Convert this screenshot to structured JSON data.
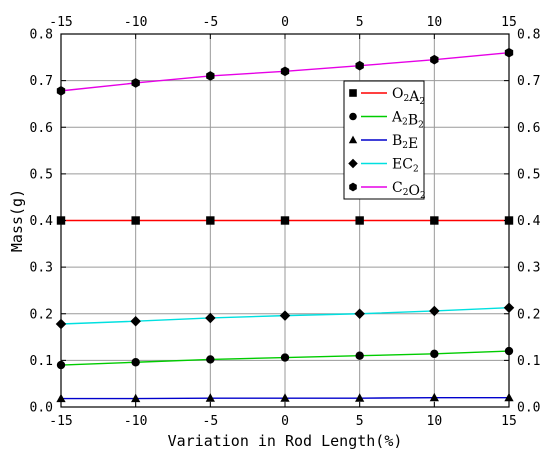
{
  "chart_data": {
    "type": "line",
    "xlabel": "Variation in Rod Length(%)",
    "ylabel": "Mass(g)",
    "x": [
      -15,
      -10,
      -5,
      0,
      5,
      10,
      15
    ],
    "xlim": [
      -15,
      15
    ],
    "ylim": [
      0.0,
      0.8
    ],
    "xticks": [
      "-15",
      "-10",
      "-5",
      "0",
      "5",
      "10",
      "15"
    ],
    "yticks": [
      "0.0",
      "0.1",
      "0.2",
      "0.3",
      "0.4",
      "0.5",
      "0.6",
      "0.7",
      "0.8"
    ],
    "grid": true,
    "mirrored_axes": true,
    "legend_position": "center-right",
    "series": [
      {
        "name": "O2A2",
        "label_main": [
          "O",
          "A"
        ],
        "label_sub": [
          "2",
          "2"
        ],
        "marker": "square",
        "color": "#ff0000",
        "values": [
          0.4,
          0.4,
          0.4,
          0.4,
          0.4,
          0.4,
          0.4
        ]
      },
      {
        "name": "A2B2",
        "label_main": [
          "A",
          "B"
        ],
        "label_sub": [
          "2",
          "2"
        ],
        "marker": "circle",
        "color": "#00cc00",
        "values": [
          0.09,
          0.096,
          0.102,
          0.106,
          0.11,
          0.114,
          0.12
        ]
      },
      {
        "name": "B2E",
        "label_main": [
          "B",
          "E"
        ],
        "label_sub": [
          "2",
          ""
        ],
        "marker": "triangle",
        "color": "#0000cc",
        "values": [
          0.018,
          0.018,
          0.019,
          0.019,
          0.019,
          0.02,
          0.02
        ]
      },
      {
        "name": "EC2",
        "label_main": [
          "EC",
          ""
        ],
        "label_sub": [
          "2",
          ""
        ],
        "marker": "diamond",
        "color": "#00e0e0",
        "values": [
          0.178,
          0.184,
          0.191,
          0.196,
          0.2,
          0.206,
          0.213
        ]
      },
      {
        "name": "C2O2",
        "label_main": [
          "C",
          "O"
        ],
        "label_sub": [
          "2",
          "2"
        ],
        "marker": "hexagon",
        "color": "#e600e6",
        "values": [
          0.678,
          0.695,
          0.71,
          0.72,
          0.732,
          0.745,
          0.76
        ]
      }
    ]
  }
}
